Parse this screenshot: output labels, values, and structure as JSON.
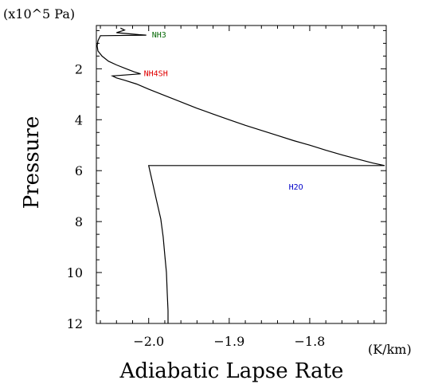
{
  "chart_data": {
    "type": "line",
    "title": "",
    "xlabel": "Adiabatic Lapse Rate",
    "ylabel": "Pressure",
    "x_unit": "(K/km)",
    "y_unit": "(x10^5 Pa)",
    "xlim": [
      -2.065,
      -1.705
    ],
    "ylim": [
      12,
      0.3
    ],
    "y_inverted": true,
    "xticks": [
      -2.0,
      -1.9,
      -1.8
    ],
    "xtick_labels": [
      "−2.0",
      "−1.9",
      "−1.8"
    ],
    "yticks": [
      2,
      4,
      6,
      8,
      10,
      12
    ],
    "ytick_labels": [
      "2",
      "4",
      "6",
      "8",
      "10",
      "12"
    ],
    "grid": false,
    "series": [
      {
        "color": "#000000",
        "points": [
          [
            -2.035,
            0.4
          ],
          [
            -2.03,
            0.48
          ],
          [
            -2.04,
            0.58
          ],
          [
            -2.012,
            0.66
          ],
          [
            -2.003,
            0.68
          ],
          [
            -2.06,
            0.7
          ],
          [
            -2.063,
            0.9
          ],
          [
            -2.064,
            1.1
          ],
          [
            -2.063,
            1.3
          ],
          [
            -2.058,
            1.5
          ],
          [
            -2.05,
            1.7
          ],
          [
            -2.04,
            1.85
          ],
          [
            -2.028,
            2.0
          ],
          [
            -2.018,
            2.12
          ],
          [
            -2.01,
            2.2
          ],
          [
            -2.045,
            2.28
          ],
          [
            -2.04,
            2.36
          ],
          [
            -2.03,
            2.45
          ],
          [
            -2.015,
            2.6
          ],
          [
            -2.0,
            2.8
          ],
          [
            -1.98,
            3.05
          ],
          [
            -1.96,
            3.3
          ],
          [
            -1.94,
            3.55
          ],
          [
            -1.92,
            3.78
          ],
          [
            -1.9,
            4.0
          ],
          [
            -1.88,
            4.22
          ],
          [
            -1.86,
            4.42
          ],
          [
            -1.84,
            4.62
          ],
          [
            -1.82,
            4.82
          ],
          [
            -1.8,
            5.0
          ],
          [
            -1.78,
            5.2
          ],
          [
            -1.76,
            5.38
          ],
          [
            -1.74,
            5.55
          ],
          [
            -1.722,
            5.7
          ],
          [
            -1.707,
            5.8
          ],
          [
            -1.75,
            5.8
          ],
          [
            -1.85,
            5.8
          ],
          [
            -1.95,
            5.8
          ],
          [
            -2.0,
            5.8
          ],
          [
            -1.995,
            6.5
          ],
          [
            -1.99,
            7.2
          ],
          [
            -1.985,
            7.9
          ],
          [
            -1.982,
            8.6
          ],
          [
            -1.98,
            9.3
          ],
          [
            -1.978,
            10.0
          ],
          [
            -1.977,
            10.8
          ],
          [
            -1.976,
            11.5
          ],
          [
            -1.976,
            12.0
          ]
        ]
      }
    ],
    "annotations": [
      {
        "text": "NH3",
        "x": -2.0,
        "y": 0.68,
        "color": "#0a6b0a"
      },
      {
        "text": "NH4SH",
        "x": -2.01,
        "y": 2.2,
        "color": "#e00000"
      },
      {
        "text": "H2O",
        "x": -1.83,
        "y": 6.65,
        "color": "#0000c8"
      }
    ]
  }
}
